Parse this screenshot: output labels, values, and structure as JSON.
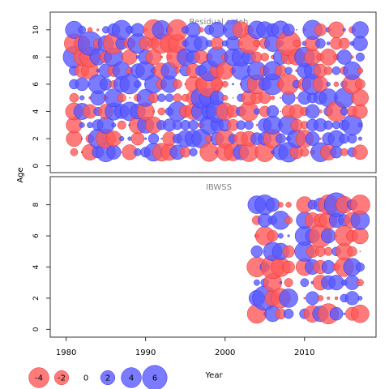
{
  "chart_data": [
    {
      "type": "scatter",
      "subtype": "bubble",
      "title": "Residual catch",
      "ylabel": "Age",
      "xlabel": "Year",
      "xlim": [
        1978,
        2019
      ],
      "ylim": [
        -0.5,
        11.3
      ],
      "yticks": [
        0,
        2,
        4,
        6,
        8,
        10
      ],
      "xticks": [
        1980,
        1990,
        2000,
        2010
      ],
      "x_years": [
        1981,
        2017
      ],
      "y_ages": [
        1,
        10
      ],
      "seed": 11
    },
    {
      "type": "scatter",
      "subtype": "bubble",
      "title": "IBWSS",
      "ylabel": "Age",
      "xlabel": "Year",
      "xlim": [
        1978,
        2019
      ],
      "ylim": [
        -0.5,
        9.8
      ],
      "yticks": [
        0,
        2,
        4,
        6,
        8
      ],
      "xticks": [
        1980,
        1990,
        2000,
        2010
      ],
      "x_years": [
        2004,
        2017
      ],
      "missing_years": [
        2009
      ],
      "y_ages": [
        1,
        8
      ],
      "seed": 29
    }
  ],
  "axis": {
    "xlabel": "Year",
    "ylabel": "Age",
    "xticks": [
      "1980",
      "1990",
      "2000",
      "2010"
    ]
  },
  "legend": {
    "items": [
      {
        "label": "-4",
        "value": -4
      },
      {
        "label": "-2",
        "value": -2
      },
      {
        "label": "0",
        "value": 0
      },
      {
        "label": "2",
        "value": 2
      },
      {
        "label": "4",
        "value": 4
      },
      {
        "label": "6",
        "value": 6
      }
    ]
  },
  "colors": {
    "negative": "#ff5a5a",
    "positive": "#5a5aff",
    "negative_stroke": "#e03030",
    "positive_stroke": "#2d2df0",
    "axis": "#333333",
    "title": "#808080"
  }
}
